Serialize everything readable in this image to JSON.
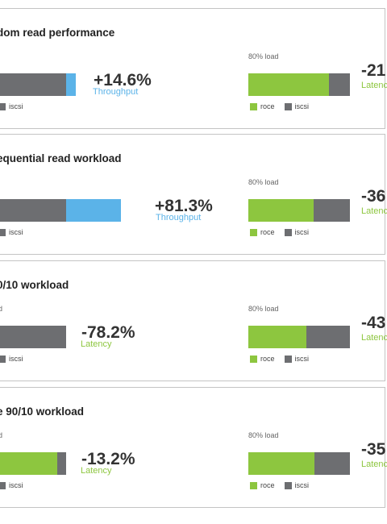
{
  "colors": {
    "roce": "#8dc63f",
    "iscsi": "#6d6e71",
    "throughput": "#5bb3e8",
    "latency": "#8dc63f",
    "text": "#333333",
    "border": "#c4c4c4"
  },
  "legend": {
    "roce": "roce",
    "iscsi": "iscsi"
  },
  "panels": [
    {
      "title": "dom read performance",
      "left": {
        "load_label": "",
        "change": "+14.6%",
        "metric": "Throughput"
      },
      "right": {
        "load_label": "80% load",
        "change": "-21",
        "metric": "Latenc"
      }
    },
    {
      "title": "equential read workload",
      "left": {
        "load_label": "",
        "change": "+81.3%",
        "metric": "Throughput"
      },
      "right": {
        "load_label": "80% load",
        "change": "-36",
        "metric": "Latenc"
      }
    },
    {
      "title": "0/10 workload",
      "left": {
        "load_label": "d",
        "change": "-78.2%",
        "metric": "Latency"
      },
      "right": {
        "load_label": "80% load",
        "change": "-43",
        "metric": "Latenc"
      }
    },
    {
      "title": "e 90/10 workload",
      "left": {
        "load_label": "d",
        "change": "-13.2%",
        "metric": "Latency"
      },
      "right": {
        "load_label": "80% load",
        "change": "-35",
        "metric": "Latenc"
      }
    }
  ],
  "chart_data": [
    {
      "type": "bar",
      "title": "dom read performance",
      "orientation": "horizontal",
      "stacked": true,
      "charts": [
        {
          "segments": [
            {
              "name": "iscsi",
              "value": 100
            },
            {
              "name": "gain",
              "value": 14.6
            }
          ],
          "change": "+14.6%",
          "metric": "Throughput"
        },
        {
          "load": "80% load",
          "segments": [
            {
              "name": "roce",
              "value": 79
            },
            {
              "name": "iscsi",
              "value": 21
            }
          ],
          "change": "-21",
          "metric": "Latency"
        }
      ]
    },
    {
      "type": "bar",
      "title": "equential read workload",
      "orientation": "horizontal",
      "stacked": true,
      "charts": [
        {
          "segments": [
            {
              "name": "iscsi",
              "value": 100
            },
            {
              "name": "gain",
              "value": 81.3
            }
          ],
          "change": "+81.3%",
          "metric": "Throughput"
        },
        {
          "load": "80% load",
          "segments": [
            {
              "name": "roce",
              "value": 64
            },
            {
              "name": "iscsi",
              "value": 36
            }
          ],
          "change": "-36",
          "metric": "Latency"
        }
      ]
    },
    {
      "type": "bar",
      "title": "0/10 workload",
      "orientation": "horizontal",
      "stacked": true,
      "charts": [
        {
          "segments": [
            {
              "name": "iscsi",
              "value": 100
            }
          ],
          "change": "-78.2%",
          "metric": "Latency"
        },
        {
          "load": "80% load",
          "segments": [
            {
              "name": "roce",
              "value": 57
            },
            {
              "name": "iscsi",
              "value": 43
            }
          ],
          "change": "-43",
          "metric": "Latency"
        }
      ]
    },
    {
      "type": "bar",
      "title": "e 90/10 workload",
      "orientation": "horizontal",
      "stacked": true,
      "charts": [
        {
          "segments": [
            {
              "name": "roce",
              "value": 86.8
            },
            {
              "name": "iscsi",
              "value": 13.2
            }
          ],
          "change": "-13.2%",
          "metric": "Latency"
        },
        {
          "load": "80% load",
          "segments": [
            {
              "name": "roce",
              "value": 65
            },
            {
              "name": "iscsi",
              "value": 35
            }
          ],
          "change": "-35",
          "metric": "Latency"
        }
      ]
    }
  ]
}
